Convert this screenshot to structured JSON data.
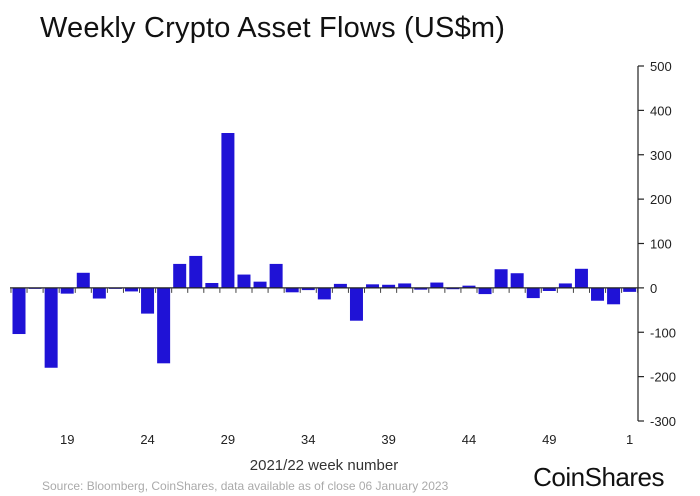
{
  "chart_data": {
    "type": "bar",
    "title": "Weekly Crypto Asset Flows (US$m)",
    "xlabel": "2021/22 week number",
    "ylabel": "",
    "ylim": [
      -300,
      500
    ],
    "yticks": [
      500,
      400,
      300,
      200,
      100,
      0,
      -100,
      -200,
      -300
    ],
    "yaxis_position": "right",
    "grid": false,
    "categories": [
      "16",
      "17",
      "18",
      "19",
      "20",
      "21",
      "22",
      "23",
      "24",
      "25",
      "26",
      "27",
      "28",
      "29",
      "30",
      "31",
      "32",
      "33",
      "34",
      "35",
      "36",
      "37",
      "38",
      "39",
      "40",
      "41",
      "42",
      "43",
      "44",
      "45",
      "46",
      "47",
      "48",
      "49",
      "50",
      "51",
      "52",
      "53",
      "1"
    ],
    "xtick_labels": [
      "19",
      "24",
      "29",
      "34",
      "39",
      "44",
      "49",
      "1"
    ],
    "series": [
      {
        "name": "Flows",
        "color": "#1f12d6",
        "values": [
          -104,
          -2,
          -180,
          -13,
          34,
          -24,
          -2,
          -8,
          -58,
          -170,
          54,
          72,
          11,
          349,
          30,
          14,
          54,
          -10,
          -5,
          -26,
          9,
          -74,
          8,
          7,
          10,
          -4,
          12,
          -3,
          5,
          -14,
          42,
          33,
          -23,
          -7,
          10,
          43,
          -29,
          -37,
          -9
        ]
      }
    ]
  },
  "footer": {
    "source": "Source: Bloomberg, CoinShares, data available as of close 06 January 2023",
    "logo": "CoinShares"
  }
}
